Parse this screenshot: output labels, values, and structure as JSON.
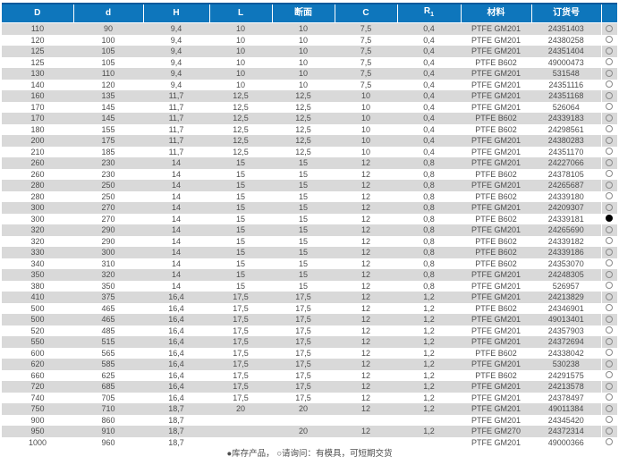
{
  "colors": {
    "header_bg": "#0e76bc",
    "top_line": "#0a5a9c",
    "stripe": "#d9d9d9",
    "text": "#4d4d4d",
    "header_text": "#ffffff",
    "circle_outline": "#8a8a8a",
    "circle_filled": "#000000"
  },
  "table": {
    "columns": [
      {
        "label": "D"
      },
      {
        "label": "d"
      },
      {
        "label": "H"
      },
      {
        "label": "L"
      },
      {
        "label": "断面"
      },
      {
        "label": "C"
      },
      {
        "label": "R",
        "sub": "1"
      },
      {
        "label": "材料"
      },
      {
        "label": "订货号"
      },
      {
        "label": ""
      }
    ],
    "rows": [
      {
        "cells": [
          "110",
          "90",
          "9,4",
          "10",
          "10",
          "7,5",
          "0,4",
          "PTFE GM201",
          "24351403"
        ],
        "status": "open"
      },
      {
        "cells": [
          "120",
          "100",
          "9,4",
          "10",
          "10",
          "7,5",
          "0,4",
          "PTFE GM201",
          "24380258"
        ],
        "status": "open"
      },
      {
        "cells": [
          "125",
          "105",
          "9,4",
          "10",
          "10",
          "7,5",
          "0,4",
          "PTFE GM201",
          "24351404"
        ],
        "status": "open"
      },
      {
        "cells": [
          "125",
          "105",
          "9,4",
          "10",
          "10",
          "7,5",
          "0,4",
          "PTFE B602",
          "49000473"
        ],
        "status": "open"
      },
      {
        "cells": [
          "130",
          "110",
          "9,4",
          "10",
          "10",
          "7,5",
          "0,4",
          "PTFE GM201",
          "531548"
        ],
        "status": "open"
      },
      {
        "cells": [
          "140",
          "120",
          "9,4",
          "10",
          "10",
          "7,5",
          "0,4",
          "PTFE GM201",
          "24351116"
        ],
        "status": "open"
      },
      {
        "cells": [
          "160",
          "135",
          "11,7",
          "12,5",
          "12,5",
          "10",
          "0,4",
          "PTFE GM201",
          "24351168"
        ],
        "status": "open"
      },
      {
        "cells": [
          "170",
          "145",
          "11,7",
          "12,5",
          "12,5",
          "10",
          "0,4",
          "PTFE GM201",
          "526064"
        ],
        "status": "open"
      },
      {
        "cells": [
          "170",
          "145",
          "11,7",
          "12,5",
          "12,5",
          "10",
          "0,4",
          "PTFE B602",
          "24339183"
        ],
        "status": "open"
      },
      {
        "cells": [
          "180",
          "155",
          "11,7",
          "12,5",
          "12,5",
          "10",
          "0,4",
          "PTFE B602",
          "24298561"
        ],
        "status": "open"
      },
      {
        "cells": [
          "200",
          "175",
          "11,7",
          "12,5",
          "12,5",
          "10",
          "0,4",
          "PTFE GM201",
          "24380283"
        ],
        "status": "open"
      },
      {
        "cells": [
          "210",
          "185",
          "11,7",
          "12,5",
          "12,5",
          "10",
          "0,4",
          "PTFE GM201",
          "24351170"
        ],
        "status": "open"
      },
      {
        "cells": [
          "260",
          "230",
          "14",
          "15",
          "15",
          "12",
          "0,8",
          "PTFE GM201",
          "24227066"
        ],
        "status": "open"
      },
      {
        "cells": [
          "260",
          "230",
          "14",
          "15",
          "15",
          "12",
          "0,8",
          "PTFE B602",
          "24378105"
        ],
        "status": "open"
      },
      {
        "cells": [
          "280",
          "250",
          "14",
          "15",
          "15",
          "12",
          "0,8",
          "PTFE GM201",
          "24265687"
        ],
        "status": "open"
      },
      {
        "cells": [
          "280",
          "250",
          "14",
          "15",
          "15",
          "12",
          "0,8",
          "PTFE B602",
          "24339180"
        ],
        "status": "open"
      },
      {
        "cells": [
          "300",
          "270",
          "14",
          "15",
          "15",
          "12",
          "0,8",
          "PTFE GM201",
          "24209307"
        ],
        "status": "open"
      },
      {
        "cells": [
          "300",
          "270",
          "14",
          "15",
          "15",
          "12",
          "0,8",
          "PTFE B602",
          "24339181"
        ],
        "status": "filled"
      },
      {
        "cells": [
          "320",
          "290",
          "14",
          "15",
          "15",
          "12",
          "0,8",
          "PTFE GM201",
          "24265690"
        ],
        "status": "open"
      },
      {
        "cells": [
          "320",
          "290",
          "14",
          "15",
          "15",
          "12",
          "0,8",
          "PTFE B602",
          "24339182"
        ],
        "status": "open"
      },
      {
        "cells": [
          "330",
          "300",
          "14",
          "15",
          "15",
          "12",
          "0,8",
          "PTFE B602",
          "24339186"
        ],
        "status": "open"
      },
      {
        "cells": [
          "340",
          "310",
          "14",
          "15",
          "15",
          "12",
          "0,8",
          "PTFE B602",
          "24353070"
        ],
        "status": "open"
      },
      {
        "cells": [
          "350",
          "320",
          "14",
          "15",
          "15",
          "12",
          "0,8",
          "PTFE GM201",
          "24248305"
        ],
        "status": "open"
      },
      {
        "cells": [
          "380",
          "350",
          "14",
          "15",
          "15",
          "12",
          "0,8",
          "PTFE GM201",
          "526957"
        ],
        "status": "open"
      },
      {
        "cells": [
          "410",
          "375",
          "16,4",
          "17,5",
          "17,5",
          "12",
          "1,2",
          "PTFE GM201",
          "24213829"
        ],
        "status": "open"
      },
      {
        "cells": [
          "500",
          "465",
          "16,4",
          "17,5",
          "17,5",
          "12",
          "1,2",
          "PTFE B602",
          "24346901"
        ],
        "status": "open"
      },
      {
        "cells": [
          "500",
          "465",
          "16,4",
          "17,5",
          "17,5",
          "12",
          "1,2",
          "PTFE GM201",
          "49013401"
        ],
        "status": "open"
      },
      {
        "cells": [
          "520",
          "485",
          "16,4",
          "17,5",
          "17,5",
          "12",
          "1,2",
          "PTFE GM201",
          "24357903"
        ],
        "status": "open"
      },
      {
        "cells": [
          "550",
          "515",
          "16,4",
          "17,5",
          "17,5",
          "12",
          "1,2",
          "PTFE GM201",
          "24372694"
        ],
        "status": "open"
      },
      {
        "cells": [
          "600",
          "565",
          "16,4",
          "17,5",
          "17,5",
          "12",
          "1,2",
          "PTFE B602",
          "24338042"
        ],
        "status": "open"
      },
      {
        "cells": [
          "620",
          "585",
          "16,4",
          "17,5",
          "17,5",
          "12",
          "1,2",
          "PTFE GM201",
          "530238"
        ],
        "status": "open"
      },
      {
        "cells": [
          "660",
          "625",
          "16,4",
          "17,5",
          "17,5",
          "12",
          "1,2",
          "PTFE B602",
          "24291575"
        ],
        "status": "open"
      },
      {
        "cells": [
          "720",
          "685",
          "16,4",
          "17,5",
          "17,5",
          "12",
          "1,2",
          "PTFE GM201",
          "24213578"
        ],
        "status": "open"
      },
      {
        "cells": [
          "740",
          "705",
          "16,4",
          "17,5",
          "17,5",
          "12",
          "1,2",
          "PTFE GM201",
          "24378497"
        ],
        "status": "open"
      },
      {
        "cells": [
          "750",
          "710",
          "18,7",
          "20",
          "20",
          "12",
          "1,2",
          "PTFE GM201",
          "49011384"
        ],
        "status": "open"
      },
      {
        "cells": [
          "900",
          "860",
          "18,7",
          "",
          "",
          "",
          "",
          "PTFE GM201",
          "24345420"
        ],
        "status": "open"
      },
      {
        "cells": [
          "950",
          "910",
          "18,7",
          "",
          "20",
          "12",
          "1,2",
          "PTFE GM270",
          "24372314"
        ],
        "status": "open"
      },
      {
        "cells": [
          "1000",
          "960",
          "18,7",
          "",
          "",
          "",
          "",
          "PTFE GM201",
          "49000366"
        ],
        "status": "open"
      }
    ]
  },
  "legend": "●库存产品， ○请询问：有模具，可短期交货"
}
